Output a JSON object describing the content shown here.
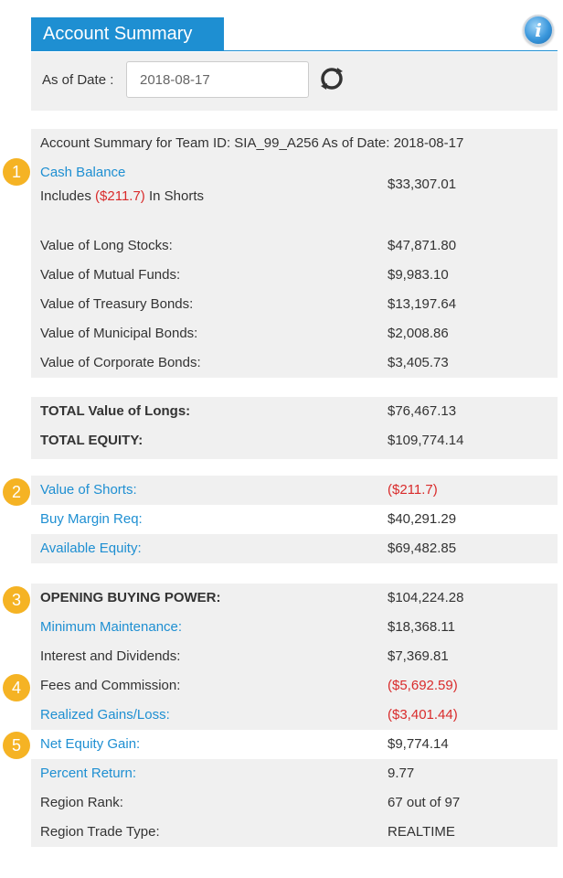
{
  "header": {
    "title": "Account Summary",
    "info_icon": "info-icon"
  },
  "date_filter": {
    "label": "As of Date :",
    "value": "2018-08-17",
    "refresh_icon": "refresh-icon"
  },
  "summary_title": "Account Summary for Team ID: SIA_99_A256 As of Date: 2018-08-17",
  "cash": {
    "label": "Cash Balance",
    "includes_prefix": "Includes",
    "includes_amount": "($211.7)",
    "includes_suffix": "In Shorts",
    "value": "$33,307.01"
  },
  "holdings": [
    {
      "label": "Value of Long Stocks:",
      "value": "$47,871.80"
    },
    {
      "label": "Value of Mutual Funds:",
      "value": "$9,983.10"
    },
    {
      "label": "Value of Treasury Bonds:",
      "value": "$13,197.64"
    },
    {
      "label": "Value of Municipal Bonds:",
      "value": "$2,008.86"
    },
    {
      "label": "Value of Corporate Bonds:",
      "value": "$3,405.73"
    }
  ],
  "totals": [
    {
      "label": "TOTAL Value of Longs:",
      "value": "$76,467.13"
    },
    {
      "label": "TOTAL EQUITY:",
      "value": "$109,774.14"
    }
  ],
  "margin": [
    {
      "label": "Value of Shorts:",
      "value": "($211.7)"
    },
    {
      "label": "Buy Margin Req:",
      "value": "$40,291.29"
    },
    {
      "label": "Available Equity:",
      "value": "$69,482.85"
    }
  ],
  "performance": [
    {
      "label": "OPENING BUYING POWER:",
      "value": "$104,224.28"
    },
    {
      "label": "Minimum Maintenance:",
      "value": "$18,368.11"
    },
    {
      "label": "Interest and Dividends:",
      "value": "$7,369.81"
    },
    {
      "label": "Fees and Commission:",
      "value": "($5,692.59)"
    },
    {
      "label": "Realized Gains/Loss:",
      "value": "($3,401.44)"
    },
    {
      "label": "Net Equity Gain:",
      "value": "$9,774.14"
    },
    {
      "label": "Percent Return:",
      "value": "9.77"
    },
    {
      "label": "Region Rank:",
      "value": "67 out of 97"
    },
    {
      "label": "Region Trade Type:",
      "value": "REALTIME"
    }
  ],
  "badges": [
    "1",
    "2",
    "3",
    "4",
    "5"
  ],
  "colors": {
    "accent": "#1e8fd2",
    "negative": "#d92b2b",
    "badge": "#f5b324",
    "panel": "#f0f0f0"
  }
}
